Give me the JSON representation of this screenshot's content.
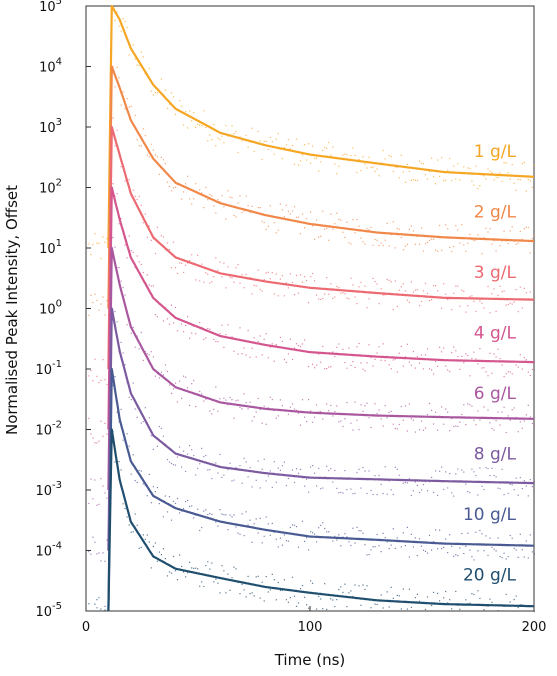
{
  "chart_data": {
    "type": "line",
    "xlabel": "Time (ns)",
    "ylabel": "Normalised Peak Intensity, Offset",
    "xlim": [
      0,
      200
    ],
    "ylim": [
      1e-05,
      100000
    ],
    "y_scale": "log",
    "grid": false,
    "x_ticks": [
      {
        "value": 0,
        "label": "0"
      },
      {
        "value": 100,
        "label": "100"
      },
      {
        "value": 200,
        "label": "200"
      }
    ],
    "y_ticks": [
      {
        "value": 100000,
        "base": "10",
        "exp": "5"
      },
      {
        "value": 10000,
        "base": "10",
        "exp": "4"
      },
      {
        "value": 1000,
        "base": "10",
        "exp": "3"
      },
      {
        "value": 100,
        "base": "10",
        "exp": "2"
      },
      {
        "value": 10,
        "base": "10",
        "exp": "1"
      },
      {
        "value": 1,
        "base": "10",
        "exp": "0"
      },
      {
        "value": 0.1,
        "base": "10",
        "exp": "-1"
      },
      {
        "value": 0.01,
        "base": "10",
        "exp": "-2"
      },
      {
        "value": 0.001,
        "base": "10",
        "exp": "-3"
      },
      {
        "value": 0.0001,
        "base": "10",
        "exp": "-4"
      },
      {
        "value": 1e-05,
        "base": "10",
        "exp": "-5"
      }
    ],
    "series": [
      {
        "name": "1 g/L",
        "color": "#f5a623",
        "label_y": 400,
        "x": [
          10,
          11.5,
          15,
          20,
          30,
          40,
          60,
          80,
          100,
          130,
          160,
          200
        ],
        "y": [
          10.0,
          100000,
          60000,
          20000,
          5000,
          2000,
          800,
          500,
          350,
          250,
          180,
          150
        ]
      },
      {
        "name": "2 g/L",
        "color": "#f0884a",
        "label_y": 40,
        "x": [
          10,
          11.5,
          15,
          20,
          30,
          40,
          60,
          80,
          100,
          130,
          160,
          200
        ],
        "y": [
          1,
          10000,
          4500,
          1300,
          300,
          120,
          55,
          35,
          25,
          18,
          15,
          13
        ]
      },
      {
        "name": "3 g/L",
        "color": "#ec6a72",
        "label_y": 4,
        "x": [
          10,
          11.5,
          15,
          20,
          30,
          40,
          60,
          80,
          100,
          130,
          160,
          200
        ],
        "y": [
          0.1,
          1000,
          350,
          80,
          15,
          7,
          3.8,
          2.8,
          2.2,
          1.8,
          1.5,
          1.4
        ]
      },
      {
        "name": "4 g/L",
        "color": "#d4568e",
        "label_y": 0.4,
        "x": [
          10,
          11.5,
          15,
          20,
          30,
          40,
          60,
          80,
          100,
          130,
          160,
          200
        ],
        "y": [
          0.01,
          100,
          30,
          7,
          1.5,
          0.7,
          0.35,
          0.25,
          0.19,
          0.16,
          0.14,
          0.13
        ]
      },
      {
        "name": "6 g/L",
        "color": "#a958a0",
        "label_y": 0.04,
        "x": [
          10,
          11.5,
          15,
          20,
          30,
          40,
          60,
          80,
          100,
          130,
          160,
          200
        ],
        "y": [
          0.001,
          10,
          2.5,
          0.5,
          0.1,
          0.05,
          0.028,
          0.022,
          0.019,
          0.017,
          0.016,
          0.015
        ]
      },
      {
        "name": "8 g/L",
        "color": "#7c5aa0",
        "label_y": 0.004,
        "x": [
          10,
          11.5,
          15,
          20,
          30,
          40,
          60,
          80,
          100,
          130,
          160,
          200
        ],
        "y": [
          0.0001,
          1,
          0.2,
          0.04,
          0.008,
          0.004,
          0.0024,
          0.0019,
          0.0016,
          0.0015,
          0.0014,
          0.0013
        ]
      },
      {
        "name": "10 g/L",
        "color": "#4a5a92",
        "label_y": 0.0004,
        "x": [
          10,
          11.5,
          15,
          20,
          30,
          40,
          60,
          80,
          100,
          130,
          160,
          200
        ],
        "y": [
          1e-05,
          0.1,
          0.015,
          0.003,
          0.0008,
          0.0005,
          0.0003,
          0.00022,
          0.00017,
          0.00015,
          0.00013,
          0.00012
        ]
      },
      {
        "name": "20 g/L",
        "color": "#1f4e6e",
        "label_y": 4e-05,
        "x": [
          10,
          11.5,
          15,
          20,
          30,
          40,
          60,
          80,
          100,
          130,
          160,
          200
        ],
        "y": [
          1e-05,
          0.01,
          0.0015,
          0.0003,
          8e-05,
          5e-05,
          3.5e-05,
          2.5e-05,
          2e-05,
          1.5e-05,
          1.3e-05,
          1.2e-05
        ]
      }
    ]
  }
}
